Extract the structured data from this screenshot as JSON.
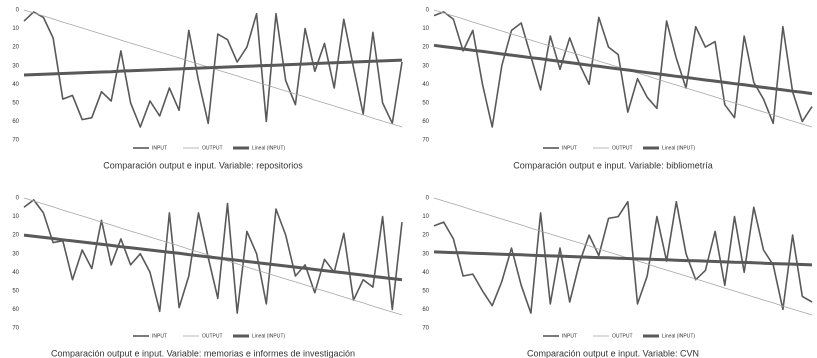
{
  "chart_data": [
    {
      "type": "line",
      "caption": "Comparación output e input. Variable: repositorios",
      "y_reversed": true,
      "grid": false,
      "ylim": [
        0,
        70
      ],
      "yticks": [
        0,
        10,
        20,
        30,
        40,
        50,
        60,
        70
      ],
      "series": [
        {
          "name": "INPUT",
          "color": "#595959",
          "width": 1.6,
          "values": [
            6,
            1,
            4,
            15,
            48,
            46,
            59,
            58,
            44,
            49,
            22,
            50,
            63,
            49,
            57,
            42,
            54,
            11,
            38,
            61,
            13,
            16,
            28,
            20,
            2,
            60,
            2,
            38,
            51,
            10,
            33,
            18,
            42,
            5,
            31,
            56,
            12,
            50,
            61,
            28
          ]
        },
        {
          "name": "OUTPUT",
          "color": "#a6a6a6",
          "width": 0.8,
          "values": [
            0,
            1.6,
            3.2,
            4.8,
            6.5,
            8.1,
            9.7,
            11.3,
            12.9,
            14.5,
            16.2,
            17.8,
            19.4,
            21,
            22.6,
            24.2,
            25.8,
            27.5,
            29.1,
            30.7,
            32.3,
            33.9,
            35.5,
            37.2,
            38.8,
            40.4,
            42,
            43.6,
            45.2,
            46.8,
            48.5,
            50.1,
            51.7,
            53.3,
            54.9,
            56.5,
            58.2,
            59.8,
            61.4,
            63
          ]
        },
        {
          "name": "Lineal (INPUT)",
          "color": "#595959",
          "width": 3,
          "values": [
            35,
            34.8,
            34.6,
            34.4,
            34.2,
            34,
            33.8,
            33.6,
            33.4,
            33.2,
            32.9,
            32.7,
            32.5,
            32.3,
            32.1,
            31.9,
            31.7,
            31.5,
            31.3,
            31.1,
            30.9,
            30.7,
            30.5,
            30.3,
            30.1,
            29.9,
            29.7,
            29.5,
            29.3,
            29.1,
            28.8,
            28.6,
            28.4,
            28.2,
            28,
            27.8,
            27.6,
            27.4,
            27.2,
            27
          ]
        }
      ]
    },
    {
      "type": "line",
      "caption": "Comparación output e input. Variable: bibliometría",
      "y_reversed": true,
      "grid": false,
      "ylim": [
        0,
        70
      ],
      "yticks": [
        0,
        10,
        20,
        30,
        40,
        50,
        60,
        70
      ],
      "series": [
        {
          "name": "INPUT",
          "color": "#595959",
          "width": 1.6,
          "values": [
            3,
            1,
            5,
            22,
            11,
            40,
            63,
            30,
            11,
            7,
            25,
            43,
            14,
            32,
            15,
            29,
            40,
            4,
            20,
            24,
            55,
            37,
            47,
            53,
            6,
            26,
            42,
            9,
            20,
            17,
            51,
            58,
            14,
            39,
            48,
            61,
            9,
            44,
            60,
            52
          ]
        },
        {
          "name": "OUTPUT",
          "color": "#a6a6a6",
          "width": 0.8,
          "values": [
            0,
            1.6,
            3.2,
            4.8,
            6.5,
            8.1,
            9.7,
            11.3,
            12.9,
            14.5,
            16.2,
            17.8,
            19.4,
            21,
            22.6,
            24.2,
            25.8,
            27.5,
            29.1,
            30.7,
            32.3,
            33.9,
            35.5,
            37.2,
            38.8,
            40.4,
            42,
            43.6,
            45.2,
            46.8,
            48.5,
            50.1,
            51.7,
            53.3,
            54.9,
            56.5,
            58.2,
            59.8,
            61.4,
            63
          ]
        },
        {
          "name": "Lineal (INPUT)",
          "color": "#595959",
          "width": 3,
          "values": [
            19,
            19.7,
            20.3,
            21,
            21.7,
            22.3,
            23,
            23.7,
            24.3,
            25,
            25.7,
            26.3,
            27,
            27.7,
            28.3,
            29,
            29.7,
            30.3,
            31,
            31.7,
            32.3,
            33,
            33.7,
            34.3,
            35,
            35.7,
            36.3,
            37,
            37.7,
            38.3,
            39,
            39.7,
            40.3,
            41,
            41.7,
            42.3,
            43,
            43.7,
            44.3,
            45
          ]
        }
      ]
    },
    {
      "type": "line",
      "caption": "Comparación output e input. Variable: memorias e informes de investigación",
      "y_reversed": true,
      "grid": false,
      "ylim": [
        0,
        70
      ],
      "yticks": [
        0,
        10,
        20,
        30,
        40,
        50,
        60,
        70
      ],
      "series": [
        {
          "name": "INPUT",
          "color": "#595959",
          "width": 1.6,
          "values": [
            5,
            1,
            8,
            24,
            23,
            44,
            28,
            38,
            12,
            36,
            22,
            36,
            30,
            40,
            61,
            8,
            59,
            42,
            8,
            32,
            54,
            3,
            62,
            18,
            30,
            57,
            6,
            20,
            42,
            36,
            51,
            33,
            40,
            19,
            55,
            44,
            48,
            10,
            60,
            13
          ]
        },
        {
          "name": "OUTPUT",
          "color": "#a6a6a6",
          "width": 0.8,
          "values": [
            0,
            1.6,
            3.2,
            4.8,
            6.5,
            8.1,
            9.7,
            11.3,
            12.9,
            14.5,
            16.2,
            17.8,
            19.4,
            21,
            22.6,
            24.2,
            25.8,
            27.5,
            29.1,
            30.7,
            32.3,
            33.9,
            35.5,
            37.2,
            38.8,
            40.4,
            42,
            43.6,
            45.2,
            46.8,
            48.5,
            50.1,
            51.7,
            53.3,
            54.9,
            56.5,
            58.2,
            59.8,
            61.4,
            63
          ]
        },
        {
          "name": "Lineal (INPUT)",
          "color": "#595959",
          "width": 3,
          "values": [
            20,
            20.6,
            21.2,
            21.8,
            22.5,
            23.1,
            23.7,
            24.3,
            24.9,
            25.5,
            26.2,
            26.8,
            27.4,
            28,
            28.6,
            29.2,
            29.8,
            30.5,
            31.1,
            31.7,
            32.3,
            32.9,
            33.5,
            34.2,
            34.8,
            35.4,
            36,
            36.6,
            37.2,
            37.8,
            38.5,
            39.1,
            39.7,
            40.3,
            40.9,
            41.5,
            42.2,
            42.8,
            43.4,
            44
          ]
        }
      ]
    },
    {
      "type": "line",
      "caption": "Comparación output e input. Variable: CVN",
      "y_reversed": true,
      "grid": false,
      "ylim": [
        0,
        70
      ],
      "yticks": [
        0,
        10,
        20,
        30,
        40,
        50,
        60,
        70
      ],
      "series": [
        {
          "name": "INPUT",
          "color": "#595959",
          "width": 1.6,
          "values": [
            15,
            13,
            22,
            42,
            41,
            50,
            58,
            45,
            27,
            47,
            62,
            8,
            57,
            27,
            56,
            35,
            20,
            31,
            11,
            10,
            2,
            57,
            42,
            10,
            34,
            2,
            30,
            44,
            39,
            18,
            47,
            10,
            40,
            5,
            28,
            36,
            60,
            20,
            53,
            56
          ]
        },
        {
          "name": "OUTPUT",
          "color": "#a6a6a6",
          "width": 0.8,
          "values": [
            0,
            1.6,
            3.2,
            4.8,
            6.5,
            8.1,
            9.7,
            11.3,
            12.9,
            14.5,
            16.2,
            17.8,
            19.4,
            21,
            22.6,
            24.2,
            25.8,
            27.5,
            29.1,
            30.7,
            32.3,
            33.9,
            35.5,
            37.2,
            38.8,
            40.4,
            42,
            43.6,
            45.2,
            46.8,
            48.5,
            50.1,
            51.7,
            53.3,
            54.9,
            56.5,
            58.2,
            59.8,
            61.4,
            63
          ]
        },
        {
          "name": "Lineal (INPUT)",
          "color": "#595959",
          "width": 3,
          "values": [
            29,
            29.2,
            29.4,
            29.5,
            29.7,
            29.9,
            30.1,
            30.3,
            30.4,
            30.6,
            30.8,
            31,
            31.2,
            31.3,
            31.5,
            31.7,
            31.9,
            32.1,
            32.2,
            32.4,
            32.6,
            32.8,
            32.9,
            33.1,
            33.3,
            33.5,
            33.7,
            33.8,
            34,
            34.2,
            34.4,
            34.6,
            34.7,
            34.9,
            35.1,
            35.3,
            35.5,
            35.6,
            35.8,
            36
          ]
        }
      ]
    }
  ]
}
